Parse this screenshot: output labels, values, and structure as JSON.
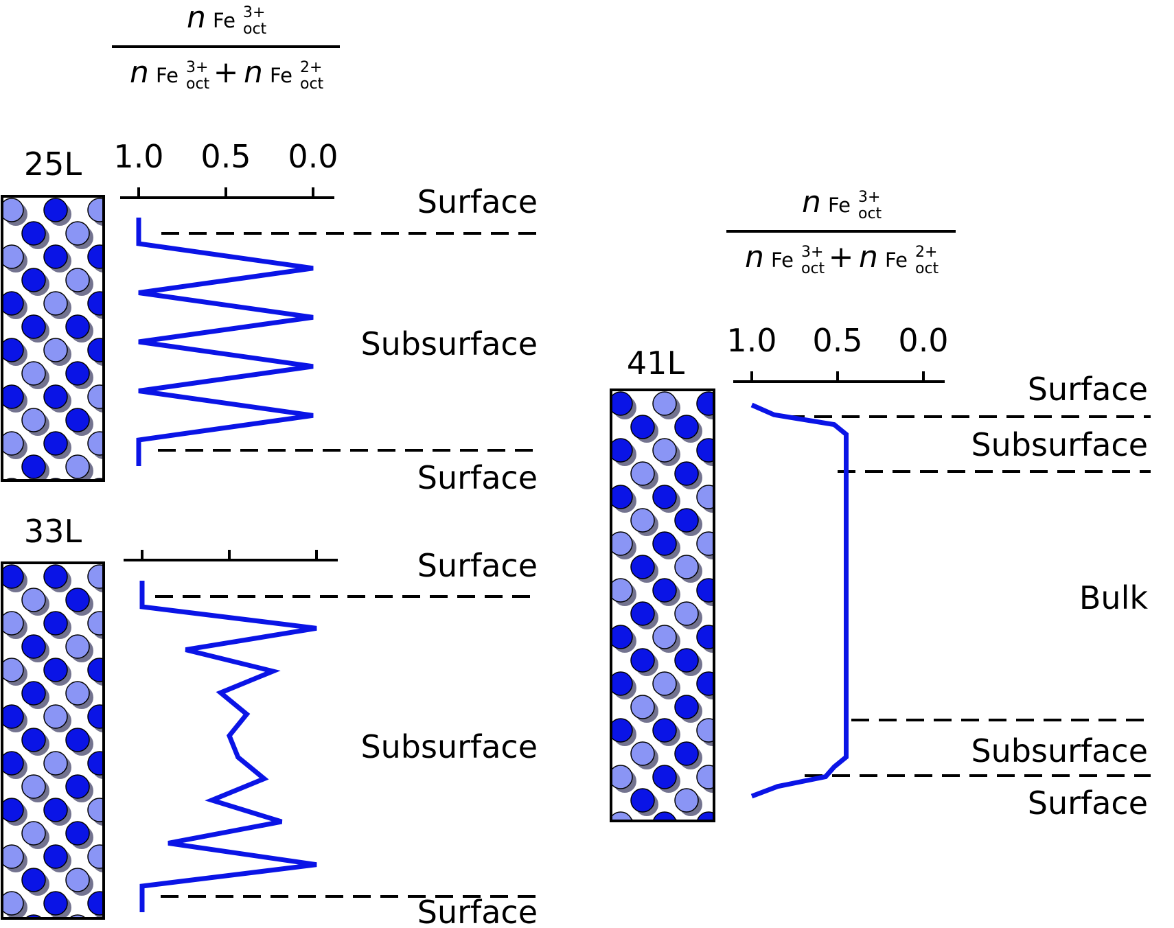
{
  "chart_data": [
    {
      "type": "line",
      "panel_label": "25L",
      "xlim": [
        1.0,
        0.0
      ],
      "x_ticks": [
        "1.0",
        "0.5",
        "0.0"
      ],
      "region_labels": {
        "top": [
          "Surface"
        ],
        "middle": "Subsurface",
        "bottom": [
          "Surface"
        ]
      },
      "values": [
        1.0,
        1.0,
        0.0,
        1.0,
        0.0,
        1.0,
        0.0,
        1.0,
        0.0,
        1.0,
        1.0
      ],
      "line_color": "#0a14e6"
    },
    {
      "type": "line",
      "panel_label": "33L",
      "xlim": [
        1.0,
        0.0
      ],
      "x_ticks": [
        "",
        "",
        ""
      ],
      "region_labels": {
        "top": [
          "Surface"
        ],
        "middle": "Subsurface",
        "bottom": [
          "Surface"
        ]
      },
      "values": [
        1.0,
        1.0,
        0.0,
        0.75,
        0.25,
        0.55,
        0.4,
        0.5,
        0.45,
        0.3,
        0.6,
        0.2,
        0.85,
        0.0,
        1.0,
        1.0
      ],
      "line_color": "#0a14e6"
    },
    {
      "type": "line",
      "panel_label": "41L",
      "xlim": [
        1.0,
        0.0
      ],
      "x_ticks": [
        "1.0",
        "0.5",
        "0.0"
      ],
      "region_labels": {
        "top": [
          "Surface",
          "Subsurface"
        ],
        "middle": "Bulk",
        "bottom": [
          "Subsurface",
          "Surface"
        ]
      },
      "values": [
        1.0,
        0.87,
        0.52,
        0.45,
        0.45,
        0.45,
        0.45,
        0.45,
        0.45,
        0.45,
        0.45,
        0.45,
        0.45,
        0.45,
        0.45,
        0.45,
        0.45,
        0.45,
        0.45,
        0.45,
        0.45,
        0.45,
        0.45,
        0.45,
        0.45,
        0.45,
        0.45,
        0.45,
        0.45,
        0.45,
        0.45,
        0.45,
        0.45,
        0.45,
        0.45,
        0.45,
        0.45,
        0.52,
        0.57,
        0.85,
        1.0
      ],
      "line_color": "#0a14e6"
    }
  ],
  "axis_title": {
    "numerator": {
      "var": "n",
      "species": "Fe",
      "sup": "3+",
      "sub": "oct"
    },
    "denominator": [
      {
        "var": "n",
        "species": "Fe",
        "sup": "3+",
        "sub": "oct"
      },
      {
        "op": "+"
      },
      {
        "var": "n",
        "species": "Fe",
        "sup": "2+",
        "sub": "oct"
      }
    ]
  },
  "atom_colors": {
    "dark": "#0a14e6",
    "light": "#8a95f5",
    "outline": "#000000"
  }
}
